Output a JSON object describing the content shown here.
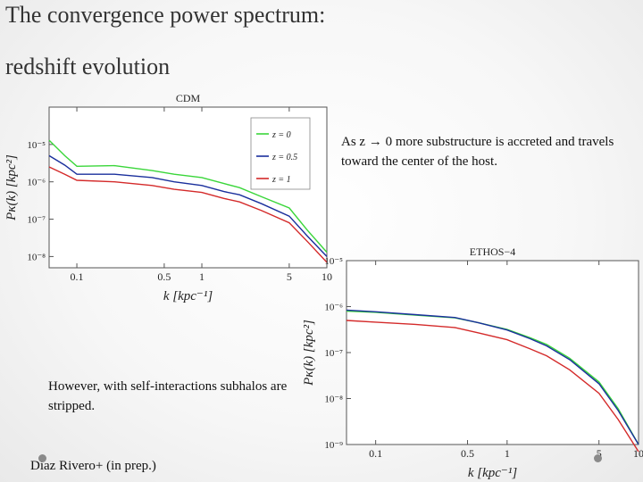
{
  "slide": {
    "title_line1": "The convergence power spectrum:",
    "title_line2": "redshift evolution",
    "note_top": "As z → 0 more substructure is accreted and travels toward the center of the host.",
    "note_bottom": "However, with self-interactions subhalos are stripped.",
    "credit": "Diaz Rivero+ (in prep.)"
  },
  "colors": {
    "green": "#3ad63a",
    "blue": "#1a2f9c",
    "red": "#d42a2a"
  },
  "chart_data": [
    {
      "type": "line",
      "title": "CDM",
      "xlabel": "k [kpc⁻¹]",
      "ylabel": "Pκ(k) [kpc²]",
      "xscale": "log",
      "yscale": "log",
      "xlim": [
        0.06,
        10
      ],
      "ylim": [
        5e-09,
        0.0001
      ],
      "xticks": [
        0.1,
        0.5,
        1,
        5,
        10
      ],
      "xtick_labels": [
        "0.1",
        "0.5",
        "1",
        "5",
        "10"
      ],
      "yticks": [
        1e-05,
        1e-06,
        1e-07,
        1e-08
      ],
      "ytick_labels": [
        "10⁻⁵",
        "10⁻⁶",
        "10⁻⁷",
        "10⁻⁸"
      ],
      "legend_position": "top-right",
      "series": [
        {
          "name": "z = 0",
          "color": "#3ad63a",
          "points": [
            [
              0.06,
              1.3e-05
            ],
            [
              0.08,
              5e-06
            ],
            [
              0.1,
              2.6e-06
            ],
            [
              0.2,
              2.7e-06
            ],
            [
              0.4,
              2e-06
            ],
            [
              0.6,
              1.6e-06
            ],
            [
              1,
              1.3e-06
            ],
            [
              1.5,
              9e-07
            ],
            [
              2,
              7e-07
            ],
            [
              3,
              4e-07
            ],
            [
              5,
              2e-07
            ],
            [
              7,
              5e-08
            ],
            [
              10,
              1.3e-08
            ]
          ]
        },
        {
          "name": "z = 0.5",
          "color": "#1a2f9c",
          "points": [
            [
              0.06,
              5e-06
            ],
            [
              0.08,
              2.8e-06
            ],
            [
              0.1,
              1.6e-06
            ],
            [
              0.2,
              1.6e-06
            ],
            [
              0.4,
              1.3e-06
            ],
            [
              0.6,
              1e-06
            ],
            [
              1,
              8e-07
            ],
            [
              1.5,
              5.5e-07
            ],
            [
              2,
              4.5e-07
            ],
            [
              3,
              2.6e-07
            ],
            [
              5,
              1.2e-07
            ],
            [
              7,
              3.5e-08
            ],
            [
              10,
              1e-08
            ]
          ]
        },
        {
          "name": "z = 1",
          "color": "#d42a2a",
          "points": [
            [
              0.06,
              2.5e-06
            ],
            [
              0.08,
              1.6e-06
            ],
            [
              0.1,
              1.1e-06
            ],
            [
              0.2,
              1e-06
            ],
            [
              0.4,
              8e-07
            ],
            [
              0.6,
              6.3e-07
            ],
            [
              1,
              5.2e-07
            ],
            [
              1.5,
              3.6e-07
            ],
            [
              2,
              2.9e-07
            ],
            [
              3,
              1.7e-07
            ],
            [
              5,
              8e-08
            ],
            [
              7,
              2.5e-08
            ],
            [
              10,
              7e-09
            ]
          ]
        }
      ],
      "legend": [
        "z = 0",
        "z = 0.5",
        "z = 1"
      ]
    },
    {
      "type": "line",
      "title": "ETHOS−4",
      "xlabel": "k [kpc⁻¹]",
      "ylabel": "Pκ(k) [kpc²]",
      "xscale": "log",
      "yscale": "log",
      "xlim": [
        0.06,
        10
      ],
      "ylim": [
        1e-09,
        1e-05
      ],
      "xticks": [
        0.1,
        0.5,
        1,
        5,
        10
      ],
      "xtick_labels": [
        "0.1",
        "0.5",
        "1",
        "5",
        "10"
      ],
      "yticks": [
        1e-05,
        1e-06,
        1e-07,
        1e-08,
        1e-09
      ],
      "ytick_labels": [
        "10⁻⁵",
        "10⁻⁶",
        "10⁻⁷",
        "10⁻⁸",
        "10⁻⁹"
      ],
      "series": [
        {
          "name": "z = 0",
          "color": "#3ad63a",
          "points": [
            [
              0.06,
              8e-07
            ],
            [
              0.1,
              7.5e-07
            ],
            [
              0.2,
              6.5e-07
            ],
            [
              0.4,
              5.7e-07
            ],
            [
              0.6,
              4.5e-07
            ],
            [
              1,
              3.2e-07
            ],
            [
              1.5,
              2.1e-07
            ],
            [
              2,
              1.5e-07
            ],
            [
              3,
              7.5e-08
            ],
            [
              5,
              2.3e-08
            ],
            [
              7,
              6e-09
            ],
            [
              10,
              1e-09
            ]
          ]
        },
        {
          "name": "z = 0.5",
          "color": "#1a2f9c",
          "points": [
            [
              0.06,
              8.4e-07
            ],
            [
              0.1,
              7.7e-07
            ],
            [
              0.2,
              6.7e-07
            ],
            [
              0.4,
              5.8e-07
            ],
            [
              0.6,
              4.5e-07
            ],
            [
              1,
              3.1e-07
            ],
            [
              1.5,
              2e-07
            ],
            [
              2,
              1.4e-07
            ],
            [
              3,
              7e-08
            ],
            [
              5,
              2.1e-08
            ],
            [
              7,
              5.5e-09
            ],
            [
              10,
              1e-09
            ]
          ]
        },
        {
          "name": "z = 1",
          "color": "#d42a2a",
          "points": [
            [
              0.06,
              5e-07
            ],
            [
              0.1,
              4.6e-07
            ],
            [
              0.2,
              4.1e-07
            ],
            [
              0.4,
              3.5e-07
            ],
            [
              0.6,
              2.7e-07
            ],
            [
              1,
              1.9e-07
            ],
            [
              1.5,
              1.2e-07
            ],
            [
              2,
              8.5e-08
            ],
            [
              3,
              4.2e-08
            ],
            [
              5,
              1.3e-08
            ],
            [
              7,
              3.5e-09
            ],
            [
              10,
              7e-10
            ]
          ]
        }
      ]
    }
  ]
}
